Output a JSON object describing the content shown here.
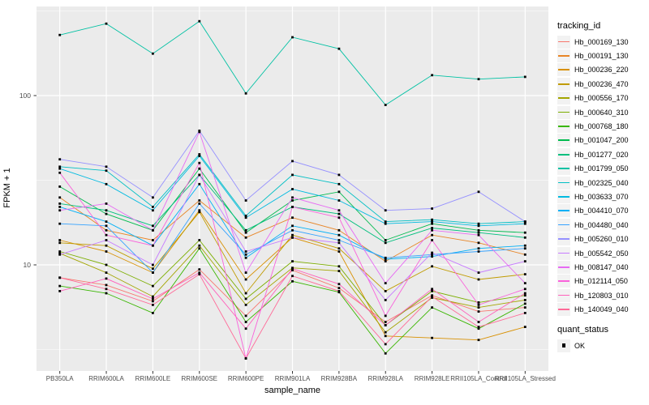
{
  "figure": {
    "kind": "ggplot-line-chart"
  },
  "legend": {
    "tracking": {
      "title": "tracking_id"
    },
    "quant": {
      "title": "quant_status",
      "items": [
        {
          "label": "OK",
          "marker": "black-square"
        }
      ]
    }
  },
  "colors": {
    "panel_background": "#EBEBEB",
    "grid": "#FFFFFF",
    "tick_text": "#4D4D4D",
    "tick_mark": "#333333",
    "point_marker": "#000000",
    "legend_key_background": "#F2F2F2"
  },
  "chart_data": {
    "type": "line",
    "title": "",
    "xlabel": "sample_name",
    "ylabel": "FPKM + 1",
    "y_scale": "log10",
    "grid": true,
    "legend_position": "right",
    "ylim": [
      2.3,
      480
    ],
    "y_ticks": [
      {
        "value": 100,
        "label": "100"
      },
      {
        "value": 10,
        "label": "10"
      }
    ],
    "y_minor_ticks": [
      3.162,
      31.62,
      316.2
    ],
    "x_categories": [
      "PB350LA",
      "RRIM600LA",
      "RRIM600LE",
      "RRIM600SE",
      "RRIM600PE",
      "RRIM901LA",
      "RRIM928BA",
      "RRIM928LA",
      "RRIM928LE",
      "RRII105LA_Control",
      "RRII105LA_Stressed"
    ],
    "point_marker": {
      "shape": "square",
      "color": "#000000",
      "quant_status": "OK"
    },
    "series": [
      {
        "name": "Hb_000169_130",
        "color": "#F8766D",
        "values": [
          8.4,
          7.6,
          6.1,
          9.4,
          5.0,
          9.3,
          7.3,
          4.6,
          6.6,
          5.3,
          5.6
        ]
      },
      {
        "name": "Hb_000191_130",
        "color": "#E88526",
        "values": [
          25,
          16,
          14,
          24,
          14.5,
          19,
          16,
          10.5,
          15,
          13.5,
          11.5
        ]
      },
      {
        "name": "Hb_000236_220",
        "color": "#D89000",
        "values": [
          14,
          12,
          9.0,
          21,
          8.2,
          14.5,
          12,
          3.8,
          3.7,
          3.6,
          4.3
        ]
      },
      {
        "name": "Hb_000236_470",
        "color": "#C09B00",
        "values": [
          13.5,
          13,
          9.5,
          20.5,
          6.8,
          15,
          12.5,
          7.0,
          9.8,
          8.2,
          8.8
        ]
      },
      {
        "name": "Hb_000556_170",
        "color": "#A3A500",
        "values": [
          11.7,
          9.0,
          6.5,
          13,
          5.8,
          9.6,
          9.2,
          4.0,
          6.4,
          5.6,
          6.2
        ]
      },
      {
        "name": "Hb_000640_310",
        "color": "#7CAE00",
        "values": [
          12,
          10,
          7.5,
          14,
          6.3,
          10.5,
          9.8,
          4.4,
          7.0,
          6.0,
          6.6
        ]
      },
      {
        "name": "Hb_000768_180",
        "color": "#39B600",
        "values": [
          7.5,
          6.8,
          5.2,
          12.5,
          4.6,
          8.0,
          6.9,
          3.0,
          5.6,
          4.2,
          5.9
        ]
      },
      {
        "name": "Hb_001047_200",
        "color": "#00BB4E",
        "values": [
          29,
          20,
          16,
          37,
          15.5,
          24,
          27,
          14,
          17.5,
          16,
          15.5
        ]
      },
      {
        "name": "Hb_001277_020",
        "color": "#00BF7D",
        "values": [
          23,
          21,
          17,
          34,
          16,
          22,
          20,
          13.5,
          16.5,
          15.5,
          14.5
        ]
      },
      {
        "name": "Hb_001799_050",
        "color": "#00C1A3",
        "values": [
          228,
          266,
          177,
          275,
          103,
          221,
          189,
          88,
          132,
          125,
          129
        ]
      },
      {
        "name": "Hb_002325_040",
        "color": "#00BFC4",
        "values": [
          38,
          36,
          22,
          45,
          19.5,
          34,
          30,
          18,
          18.5,
          17.5,
          18
        ]
      },
      {
        "name": "Hb_003633_070",
        "color": "#00BAE0",
        "values": [
          37,
          30,
          21,
          44,
          19,
          28,
          24,
          17.5,
          18,
          17,
          17.5
        ]
      },
      {
        "name": "Hb_004410_070",
        "color": "#00B0F6",
        "values": [
          22,
          18,
          13,
          30,
          11,
          17,
          15,
          10.8,
          11.2,
          12.5,
          13
        ]
      },
      {
        "name": "Hb_004480_040",
        "color": "#35A2FF",
        "values": [
          17.5,
          17,
          9.0,
          23,
          11.5,
          16,
          14,
          11,
          11.5,
          12,
          12.5
        ]
      },
      {
        "name": "Hb_005260_010",
        "color": "#9590FF",
        "values": [
          42,
          38,
          25,
          62,
          24,
          41,
          34,
          21,
          21.5,
          27,
          18
        ]
      },
      {
        "name": "Hb_005542_050",
        "color": "#C77CFF",
        "values": [
          11.5,
          14,
          10,
          34,
          12,
          14.5,
          13.5,
          6.2,
          11.8,
          9.0,
          10.5
        ]
      },
      {
        "name": "Hb_008147_040",
        "color": "#E76BF3",
        "values": [
          21,
          23,
          16,
          61,
          9.0,
          25,
          21,
          7.8,
          16,
          15,
          7.8
        ]
      },
      {
        "name": "Hb_012114_050",
        "color": "#FA62DB",
        "values": [
          35,
          15,
          13,
          40,
          2.8,
          22,
          19,
          5.0,
          14,
          5.8,
          7.2
        ]
      },
      {
        "name": "Hb_120803_010",
        "color": "#FF62BC",
        "values": [
          7.0,
          8.3,
          6.3,
          9.0,
          4.2,
          9.5,
          7.7,
          4.4,
          7.2,
          4.6,
          6.8
        ]
      },
      {
        "name": "Hb_140049_040",
        "color": "#FF6A98",
        "values": [
          8.4,
          7.2,
          5.8,
          8.8,
          2.8,
          8.6,
          7.0,
          3.4,
          6.5,
          4.3,
          5.2
        ]
      }
    ]
  }
}
